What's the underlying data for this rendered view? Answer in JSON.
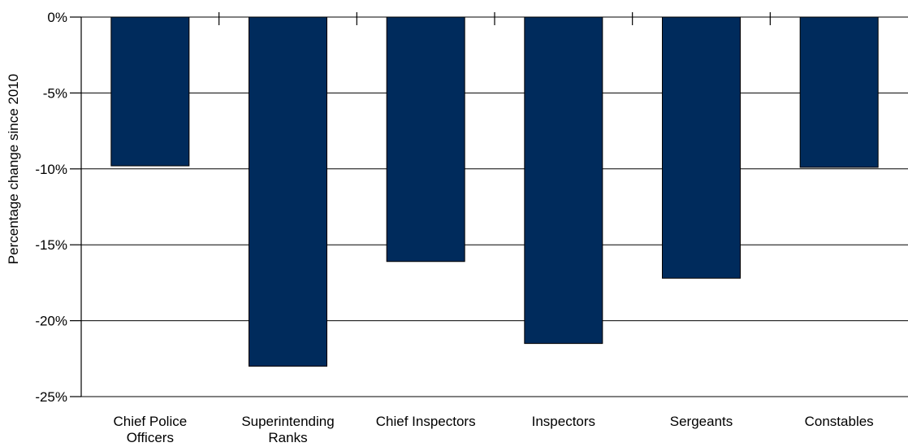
{
  "chart_data": {
    "type": "bar",
    "categories": [
      [
        "Chief Police",
        "Officers"
      ],
      [
        "Superintending",
        "Ranks"
      ],
      [
        "Chief Inspectors"
      ],
      [
        "Inspectors"
      ],
      [
        "Sergeants"
      ],
      [
        "Constables"
      ]
    ],
    "series": [
      {
        "values": [
          -9.8,
          -23.0,
          -16.1,
          -21.5,
          -17.2,
          -9.9
        ]
      }
    ],
    "ylabel": "Percentage change since 2010",
    "xlabel": "",
    "title": "",
    "ylim": [
      -25,
      0
    ],
    "yticks": [
      0,
      -5,
      -10,
      -15,
      -20,
      -25
    ],
    "ytick_labels": [
      "0%",
      "-5%",
      "-10%",
      "-15%",
      "-20%",
      "-25%"
    ],
    "grid": true,
    "bar_color": "#002b5c"
  }
}
